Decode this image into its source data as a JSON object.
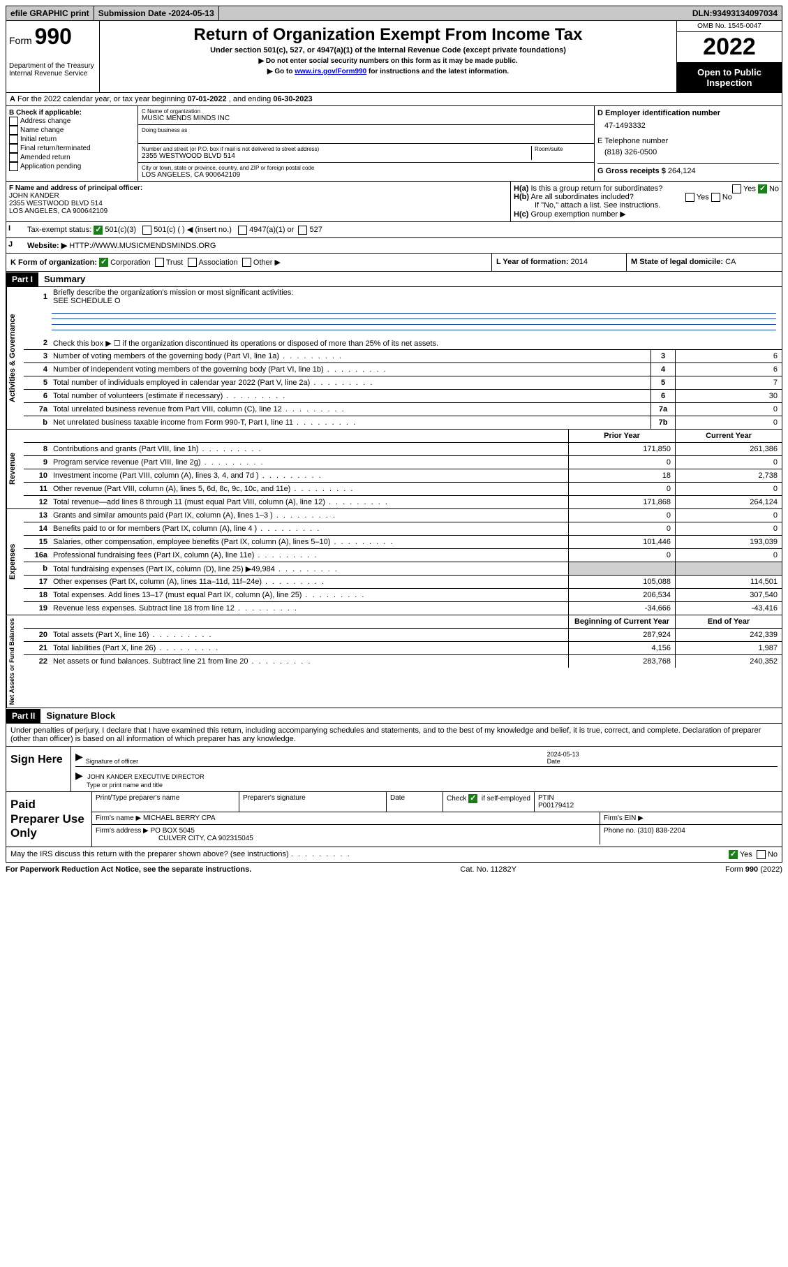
{
  "topbar": {
    "efile": "efile GRAPHIC print",
    "subdate_label": "Submission Date - ",
    "subdate": "2024-05-13",
    "dln_label": "DLN: ",
    "dln": "93493134097034"
  },
  "header": {
    "form_label": "Form",
    "form_number": "990",
    "dept": "Department of the Treasury",
    "irs": "Internal Revenue Service",
    "title": "Return of Organization Exempt From Income Tax",
    "subtitle": "Under section 501(c), 527, or 4947(a)(1) of the Internal Revenue Code (except private foundations)",
    "note1": "▶ Do not enter social security numbers on this form as it may be made public.",
    "note2_pre": "▶ Go to ",
    "note2_link": "www.irs.gov/Form990",
    "note2_post": " for instructions and the latest information.",
    "omb": "OMB No. 1545-0047",
    "year": "2022",
    "openpub": "Open to Public Inspection"
  },
  "sectionA": {
    "text_pre": "For the 2022 calendar year, or tax year beginning ",
    "begin": "07-01-2022",
    "mid": " , and ending ",
    "end": "06-30-2023"
  },
  "sectionB": {
    "label": "B Check if applicable:",
    "items": [
      "Address change",
      "Name change",
      "Initial return",
      "Final return/terminated",
      "Amended return",
      "Application pending"
    ]
  },
  "sectionC": {
    "name_label": "C Name of organization",
    "name": "MUSIC MENDS MINDS INC",
    "dba_label": "Doing business as",
    "street_label": "Number and street (or P.O. box if mail is not delivered to street address)",
    "room_label": "Room/suite",
    "street": "2355 WESTWOOD BLVD 514",
    "city_label": "City or town, state or province, country, and ZIP or foreign postal code",
    "city": "LOS ANGELES, CA  900642109"
  },
  "sectionD": {
    "label": "D Employer identification number",
    "ein": "47-1493332",
    "phone_label": "E Telephone number",
    "phone": "(818) 326-0500",
    "gross_label": "G Gross receipts $ ",
    "gross": "264,124"
  },
  "sectionF": {
    "label": "F Name and address of principal officer:",
    "name": "JOHN KANDER",
    "street": "2355 WESTWOOD BLVD 514",
    "city": "LOS ANGELES, CA  900642109"
  },
  "sectionH": {
    "a_label": "H(a)",
    "a_text": "Is this a group return for subordinates?",
    "b_label": "H(b)",
    "b_text": "Are all subordinates included?",
    "b_note": "If \"No,\" attach a list. See instructions.",
    "c_label": "H(c)",
    "c_text": "Group exemption number ▶",
    "yes": "Yes",
    "no": "No"
  },
  "sectionI": {
    "label": "Tax-exempt status:",
    "opt1": "501(c)(3)",
    "opt2": "501(c) (   ) ◀ (insert no.)",
    "opt3": "4947(a)(1) or",
    "opt4": "527"
  },
  "sectionJ": {
    "label": "Website: ▶",
    "url": "HTTP://WWW.MUSICMENDSMINDS.ORG"
  },
  "sectionK": {
    "label": "K Form of organization:",
    "opts": [
      "Corporation",
      "Trust",
      "Association",
      "Other ▶"
    ],
    "l_label": "L Year of formation: ",
    "l_val": "2014",
    "m_label": "M State of legal domicile: ",
    "m_val": "CA"
  },
  "part1": {
    "header": "Part I",
    "title": "Summary",
    "line1_label": "Briefly describe the organization's mission or most significant activities:",
    "line1_val": "SEE SCHEDULE O",
    "line2": "Check this box ▶ ☐  if the organization discontinued its operations or disposed of more than 25% of its net assets.",
    "sections": {
      "gov": {
        "label": "Activities & Governance",
        "rows": [
          {
            "n": "3",
            "d": "Number of voting members of the governing body (Part VI, line 1a)",
            "box": "3",
            "v": "6"
          },
          {
            "n": "4",
            "d": "Number of independent voting members of the governing body (Part VI, line 1b)",
            "box": "4",
            "v": "6"
          },
          {
            "n": "5",
            "d": "Total number of individuals employed in calendar year 2022 (Part V, line 2a)",
            "box": "5",
            "v": "7"
          },
          {
            "n": "6",
            "d": "Total number of volunteers (estimate if necessary)",
            "box": "6",
            "v": "30"
          },
          {
            "n": "7a",
            "d": "Total unrelated business revenue from Part VIII, column (C), line 12",
            "box": "7a",
            "v": "0"
          },
          {
            "n": "b",
            "d": "Net unrelated business taxable income from Form 990-T, Part I, line 11",
            "box": "7b",
            "v": "0"
          }
        ]
      },
      "rev": {
        "label": "Revenue",
        "hdr_prior": "Prior Year",
        "hdr_curr": "Current Year",
        "rows": [
          {
            "n": "8",
            "d": "Contributions and grants (Part VIII, line 1h)",
            "p": "171,850",
            "c": "261,386"
          },
          {
            "n": "9",
            "d": "Program service revenue (Part VIII, line 2g)",
            "p": "0",
            "c": "0"
          },
          {
            "n": "10",
            "d": "Investment income (Part VIII, column (A), lines 3, 4, and 7d )",
            "p": "18",
            "c": "2,738"
          },
          {
            "n": "11",
            "d": "Other revenue (Part VIII, column (A), lines 5, 6d, 8c, 9c, 10c, and 11e)",
            "p": "0",
            "c": "0"
          },
          {
            "n": "12",
            "d": "Total revenue—add lines 8 through 11 (must equal Part VIII, column (A), line 12)",
            "p": "171,868",
            "c": "264,124"
          }
        ]
      },
      "exp": {
        "label": "Expenses",
        "rows": [
          {
            "n": "13",
            "d": "Grants and similar amounts paid (Part IX, column (A), lines 1–3 )",
            "p": "0",
            "c": "0"
          },
          {
            "n": "14",
            "d": "Benefits paid to or for members (Part IX, column (A), line 4 )",
            "p": "0",
            "c": "0"
          },
          {
            "n": "15",
            "d": "Salaries, other compensation, employee benefits (Part IX, column (A), lines 5–10)",
            "p": "101,446",
            "c": "193,039"
          },
          {
            "n": "16a",
            "d": "Professional fundraising fees (Part IX, column (A), line 11e)",
            "p": "0",
            "c": "0"
          },
          {
            "n": "b",
            "d": "Total fundraising expenses (Part IX, column (D), line 25) ▶49,984",
            "p": "",
            "c": "",
            "shade": true
          },
          {
            "n": "17",
            "d": "Other expenses (Part IX, column (A), lines 11a–11d, 11f–24e)",
            "p": "105,088",
            "c": "114,501"
          },
          {
            "n": "18",
            "d": "Total expenses. Add lines 13–17 (must equal Part IX, column (A), line 25)",
            "p": "206,534",
            "c": "307,540"
          },
          {
            "n": "19",
            "d": "Revenue less expenses. Subtract line 18 from line 12",
            "p": "-34,666",
            "c": "-43,416"
          }
        ]
      },
      "net": {
        "label": "Net Assets or Fund Balances",
        "hdr_prior": "Beginning of Current Year",
        "hdr_curr": "End of Year",
        "rows": [
          {
            "n": "20",
            "d": "Total assets (Part X, line 16)",
            "p": "287,924",
            "c": "242,339"
          },
          {
            "n": "21",
            "d": "Total liabilities (Part X, line 26)",
            "p": "4,156",
            "c": "1,987"
          },
          {
            "n": "22",
            "d": "Net assets or fund balances. Subtract line 21 from line 20",
            "p": "283,768",
            "c": "240,352"
          }
        ]
      }
    }
  },
  "part2": {
    "header": "Part II",
    "title": "Signature Block",
    "intro": "Under penalties of perjury, I declare that I have examined this return, including accompanying schedules and statements, and to the best of my knowledge and belief, it is true, correct, and complete. Declaration of preparer (other than officer) is based on all information of which preparer has any knowledge.",
    "sign_here": "Sign Here",
    "sig_officer": "Signature of officer",
    "sig_date_label": "Date",
    "sig_date": "2024-05-13",
    "officer_name": "JOHN KANDER  EXECUTIVE DIRECTOR",
    "name_title": "Type or print name and title",
    "paid": "Paid Preparer Use Only",
    "col_print": "Print/Type preparer's name",
    "col_sig": "Preparer's signature",
    "col_date": "Date",
    "col_check": "Check ☑ if self-employed",
    "col_ptin": "PTIN",
    "ptin": "P00179412",
    "firm_name_label": "Firm's name    ▶ ",
    "firm_name": "MICHAEL BERRY CPA",
    "firm_ein_label": "Firm's EIN ▶",
    "firm_addr_label": "Firm's address ▶ ",
    "firm_addr1": "PO BOX 5045",
    "firm_addr2": "CULVER CITY, CA  902315045",
    "firm_phone_label": "Phone no. ",
    "firm_phone": "(310) 838-2204",
    "may_irs": "May the IRS discuss this return with the preparer shown above? (see instructions)"
  },
  "footer": {
    "left": "For Paperwork Reduction Act Notice, see the separate instructions.",
    "mid": "Cat. No. 11282Y",
    "right_pre": "Form ",
    "right_form": "990",
    "right_post": " (2022)"
  }
}
